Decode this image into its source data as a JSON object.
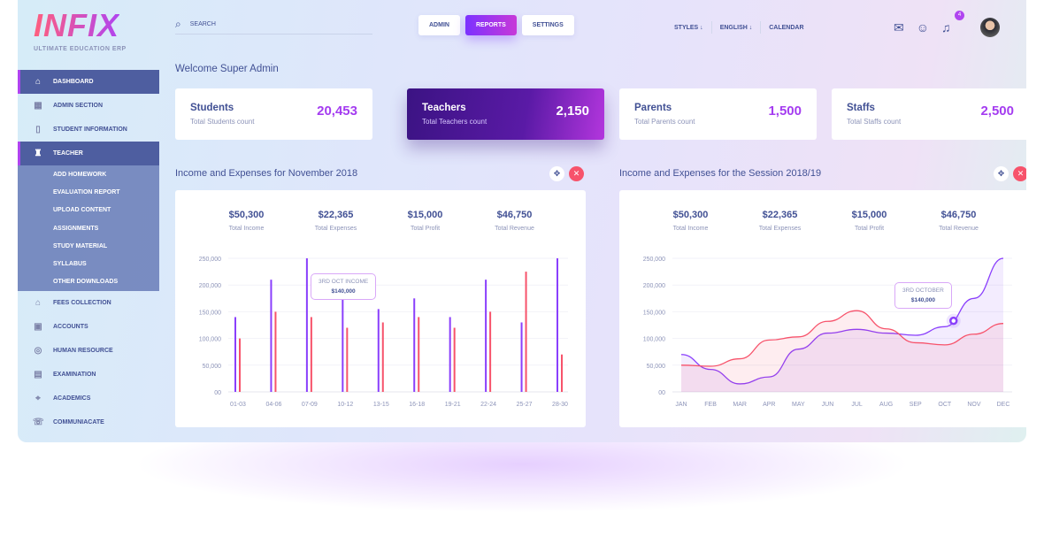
{
  "brand": {
    "logo": "INFIX",
    "tagline": "ULTIMATE EDUCATION ERP"
  },
  "sidebar": {
    "items": [
      {
        "label": "DASHBOARD",
        "icon": "home-icon",
        "active": true
      },
      {
        "label": "ADMIN SECTION",
        "icon": "building-icon"
      },
      {
        "label": "STUDENT INFORMATION",
        "icon": "book-icon"
      },
      {
        "label": "TEACHER",
        "icon": "teacher-icon",
        "active": true
      }
    ],
    "teacher_sub": [
      "ADD HOMEWORK",
      "EVALUATION REPORT",
      "UPLOAD CONTENT",
      "ASSIGNMENTS",
      "STUDY MATERIAL",
      "SYLLABUS",
      "OTHER DOWNLOADS"
    ],
    "items_after": [
      {
        "label": "FEES COLLECTION",
        "icon": "fees-icon"
      },
      {
        "label": "ACCOUNTS",
        "icon": "accounts-icon"
      },
      {
        "label": "HUMAN RESOURCE",
        "icon": "person-icon"
      },
      {
        "label": "EXAMINATION",
        "icon": "exam-icon"
      },
      {
        "label": "ACADEMICS",
        "icon": "graduation-cap-icon"
      },
      {
        "label": "COMMUNIACATE",
        "icon": "chat-icon"
      }
    ]
  },
  "header": {
    "search_placeholder": "SEARCH",
    "tabs": [
      "ADMIN",
      "REPORTS",
      "SETTINGS"
    ],
    "active_tab": "REPORTS",
    "menu": [
      "STYLES ↓",
      "ENGLISH ↓",
      "CALENDAR"
    ],
    "notification_count": "4"
  },
  "welcome": "Welcome Super Admin",
  "cards": [
    {
      "title": "Students",
      "subtitle": "Total Students count",
      "value": "20,453"
    },
    {
      "title": "Teachers",
      "subtitle": "Total Teachers count",
      "value": "2,150"
    },
    {
      "title": "Parents",
      "subtitle": "Total Parents count",
      "value": "1,500"
    },
    {
      "title": "Staffs",
      "subtitle": "Total Staffs count",
      "value": "2,500"
    }
  ],
  "panels": [
    {
      "title": "Income and Expenses for November 2018",
      "stats": [
        {
          "n": "$50,300",
          "l": "Total Income"
        },
        {
          "n": "$22,365",
          "l": "Total Expenses"
        },
        {
          "n": "$15,000",
          "l": "Total Profit"
        },
        {
          "n": "$46,750",
          "l": "Total Revenue"
        }
      ],
      "tooltip": {
        "label": "3RD OCT INCOME",
        "value": "$140,000"
      }
    },
    {
      "title": "Income and Expenses for the Session 2018/19",
      "stats": [
        {
          "n": "$50,300",
          "l": "Total Income"
        },
        {
          "n": "$22,365",
          "l": "Total Expenses"
        },
        {
          "n": "$15,000",
          "l": "Total Profit"
        },
        {
          "n": "$46,750",
          "l": "Total Revenue"
        }
      ],
      "tooltip": {
        "label": "3RD OCTOBER",
        "value": "$140,000"
      }
    }
  ],
  "colors": {
    "purple": "#8a3ffc",
    "red": "#f7536b",
    "text": "#415094"
  },
  "chart_data": [
    {
      "type": "bar",
      "categories": [
        "01-03",
        "04-06",
        "07-09",
        "10-12",
        "13-15",
        "16-18",
        "19-21",
        "22-24",
        "25-27",
        "28-30"
      ],
      "series": [
        {
          "values": [
            140000,
            210000,
            250000,
            210000,
            155000,
            175000,
            140000,
            210000,
            130000,
            250000
          ]
        },
        {
          "values": [
            100000,
            150000,
            140000,
            120000,
            130000,
            140000,
            120000,
            150000,
            225000,
            70000
          ]
        }
      ],
      "yticks": [
        "00",
        "50,000",
        "100,000",
        "150,000",
        "200,000",
        "250,000"
      ],
      "ylim": [
        0,
        250000
      ],
      "grid": true
    },
    {
      "type": "area",
      "categories": [
        "JAN",
        "FEB",
        "MAR",
        "APR",
        "MAY",
        "JUN",
        "JUL",
        "AUG",
        "SEP",
        "OCT",
        "NOV",
        "DEC"
      ],
      "series": [
        {
          "values": [
            70000,
            42000,
            15000,
            28000,
            80000,
            110000,
            117000,
            110000,
            106000,
            122000,
            175000,
            250000
          ]
        },
        {
          "values": [
            50000,
            48000,
            62000,
            97000,
            103000,
            132000,
            152000,
            118000,
            92000,
            88000,
            108000,
            128000
          ]
        }
      ],
      "yticks": [
        "00",
        "50,000",
        "100,000",
        "150,000",
        "200,000",
        "250,000"
      ],
      "ylim": [
        0,
        250000
      ],
      "grid": true
    }
  ]
}
